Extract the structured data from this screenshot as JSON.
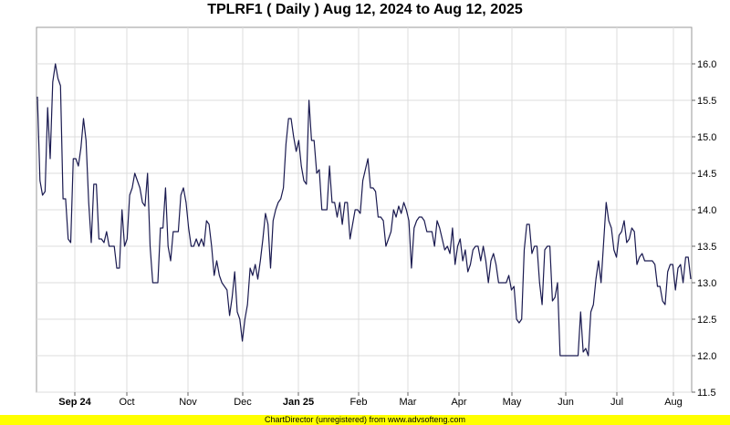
{
  "chart_data": {
    "type": "line",
    "title": "TPLRF1 ( Daily ) Aug 12, 2024 to Aug 12, 2025",
    "xlabel": "",
    "ylabel": "",
    "ylim": [
      11.5,
      16.5
    ],
    "y_ticks": [
      11.5,
      12.0,
      12.5,
      13.0,
      13.5,
      14.0,
      14.5,
      15.0,
      15.5,
      16.0
    ],
    "y_tick_labels": [
      "11.5",
      "12.0",
      "12.5",
      "13.0",
      "13.5",
      "14.0",
      "14.5",
      "15.0",
      "15.5",
      "16.0"
    ],
    "y_axis_side": "right",
    "grid": true,
    "line_color": "#1a1a50",
    "x_ticks": [
      {
        "label": "Sep 24",
        "bold": true
      },
      {
        "label": "Oct",
        "bold": false
      },
      {
        "label": "Nov",
        "bold": false
      },
      {
        "label": "Dec",
        "bold": false
      },
      {
        "label": "Jan 25",
        "bold": true
      },
      {
        "label": "Feb",
        "bold": false
      },
      {
        "label": "Mar",
        "bold": false
      },
      {
        "label": "Apr",
        "bold": false
      },
      {
        "label": "May",
        "bold": false
      },
      {
        "label": "Jun",
        "bold": false
      },
      {
        "label": "Jul",
        "bold": false
      },
      {
        "label": "Aug",
        "bold": false
      }
    ],
    "series": [
      {
        "values": [
          15.55,
          14.4,
          14.2,
          14.25,
          15.4,
          14.7,
          15.75,
          16.0,
          15.8,
          15.7,
          14.15,
          14.15,
          13.6,
          13.55,
          14.7,
          14.7,
          14.6,
          14.85,
          15.25,
          14.95,
          14.1,
          13.55,
          14.35,
          14.35,
          13.6,
          13.6,
          13.55,
          13.7,
          13.5,
          13.5,
          13.5,
          13.2,
          13.2,
          14.0,
          13.5,
          13.6,
          14.2,
          14.3,
          14.5,
          14.4,
          14.3,
          14.1,
          14.05,
          14.5,
          13.5,
          13.0,
          13.0,
          13.0,
          13.75,
          13.75,
          14.3,
          13.5,
          13.3,
          13.7,
          13.7,
          13.7,
          14.2,
          14.3,
          14.1,
          13.75,
          13.5,
          13.5,
          13.6,
          13.5,
          13.6,
          13.5,
          13.85,
          13.8,
          13.5,
          13.1,
          13.3,
          13.1,
          13.0,
          12.95,
          12.9,
          12.55,
          12.8,
          13.15,
          12.6,
          12.5,
          12.2,
          12.5,
          12.7,
          13.2,
          13.1,
          13.25,
          13.05,
          13.3,
          13.6,
          13.95,
          13.8,
          13.2,
          13.85,
          14.0,
          14.1,
          14.15,
          14.3,
          14.9,
          15.25,
          15.25,
          15.0,
          14.8,
          14.95,
          14.6,
          14.4,
          14.35,
          15.5,
          14.95,
          14.95,
          14.5,
          14.55,
          14.0,
          14.0,
          14.0,
          14.6,
          14.1,
          14.1,
          13.9,
          14.1,
          13.8,
          14.1,
          14.1,
          13.6,
          13.8,
          14.0,
          14.0,
          13.95,
          14.4,
          14.55,
          14.7,
          14.3,
          14.3,
          14.25,
          13.9,
          13.9,
          13.85,
          13.5,
          13.6,
          13.7,
          14.0,
          13.9,
          14.05,
          13.95,
          14.1,
          14.0,
          13.85,
          13.2,
          13.75,
          13.85,
          13.9,
          13.9,
          13.85,
          13.7,
          13.7,
          13.7,
          13.5,
          13.85,
          13.75,
          13.6,
          13.45,
          13.5,
          13.4,
          13.75,
          13.25,
          13.5,
          13.6,
          13.3,
          13.45,
          13.15,
          13.25,
          13.45,
          13.5,
          13.5,
          13.3,
          13.5,
          13.3,
          13.0,
          13.3,
          13.4,
          13.25,
          13.0,
          13.0,
          13.0,
          13.0,
          13.1,
          12.9,
          12.95,
          12.5,
          12.45,
          12.5,
          13.45,
          13.8,
          13.8,
          13.4,
          13.5,
          13.5,
          13.0,
          12.7,
          13.45,
          13.5,
          13.5,
          12.75,
          12.8,
          13.0,
          12.0,
          12.0,
          12.0,
          12.0,
          12.0,
          12.0,
          12.0,
          12.0,
          12.6,
          12.05,
          12.1,
          12.0,
          12.6,
          12.7,
          13.05,
          13.3,
          13.0,
          13.55,
          14.1,
          13.85,
          13.75,
          13.45,
          13.35,
          13.65,
          13.7,
          13.85,
          13.55,
          13.6,
          13.75,
          13.7,
          13.25,
          13.35,
          13.4,
          13.3,
          13.3,
          13.3,
          13.3,
          13.25,
          12.95,
          12.95,
          12.75,
          12.7,
          13.15,
          13.25,
          13.25,
          12.9,
          13.2,
          13.25,
          13.0,
          13.35,
          13.35,
          13.05
        ]
      }
    ]
  },
  "footer": {
    "text": "ChartDirector (unregistered) from www.advsofteng.com",
    "background": "#ffff00"
  }
}
